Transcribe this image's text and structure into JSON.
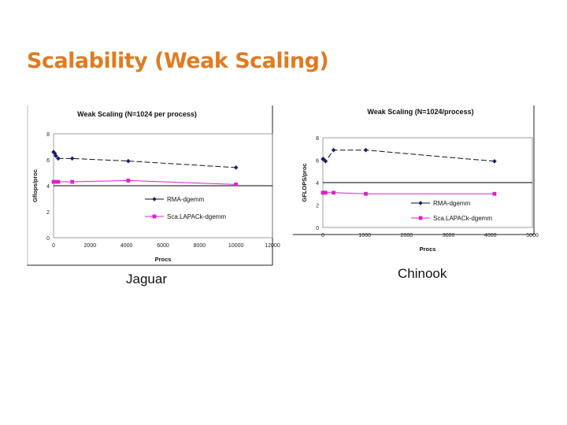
{
  "slide": {
    "title": "Scalability (Weak Scaling)",
    "caption_left": "Jaguar",
    "caption_right": "Chinook"
  },
  "colors": {
    "title": "#e07b20",
    "rma": "#1a1f6b",
    "scalapack": "#e020c8"
  },
  "chart_data": [
    {
      "type": "line",
      "title": "Weak Scaling (N=1024 per process)",
      "xlabel": "Procs",
      "ylabel": "Gflops/proc",
      "xlim": [
        0,
        12000
      ],
      "ylim": [
        0,
        8
      ],
      "xticks": [
        0,
        2000,
        4000,
        6000,
        8000,
        10000,
        12000
      ],
      "yticks": [
        0,
        2,
        4,
        6,
        8
      ],
      "grid": false,
      "legend": "center-right",
      "series": [
        {
          "name": "RMA-dgemm",
          "x": [
            1,
            64,
            128,
            256,
            1024,
            4096,
            10000
          ],
          "y": [
            6.6,
            6.5,
            6.3,
            6.1,
            6.1,
            5.9,
            5.4
          ]
        },
        {
          "name": "Sca.LAPACk-dgemm",
          "x": [
            1,
            64,
            128,
            256,
            1024,
            4096,
            10000
          ],
          "y": [
            4.3,
            4.3,
            4.3,
            4.3,
            4.3,
            4.4,
            4.1
          ]
        }
      ]
    },
    {
      "type": "line",
      "title": "Weak Scaling (N=1024/process)",
      "xlabel": "Procs",
      "ylabel": "GFLOPS/proc",
      "xlim": [
        0,
        5000
      ],
      "ylim": [
        0,
        8
      ],
      "xticks": [
        0,
        1000,
        2000,
        3000,
        4000,
        5000
      ],
      "yticks": [
        0,
        2,
        4,
        6,
        8
      ],
      "grid": false,
      "legend": "center-right",
      "series": [
        {
          "name": "RMA-dgemm",
          "x": [
            1,
            16,
            64,
            256,
            1024,
            4096
          ],
          "y": [
            6.1,
            6.1,
            5.9,
            6.9,
            6.9,
            5.9
          ]
        },
        {
          "name": "Sca.LAPACk-dgemm",
          "x": [
            1,
            16,
            64,
            256,
            1024,
            4096
          ],
          "y": [
            3.1,
            3.1,
            3.1,
            3.1,
            3.0,
            3.0
          ]
        }
      ]
    }
  ]
}
